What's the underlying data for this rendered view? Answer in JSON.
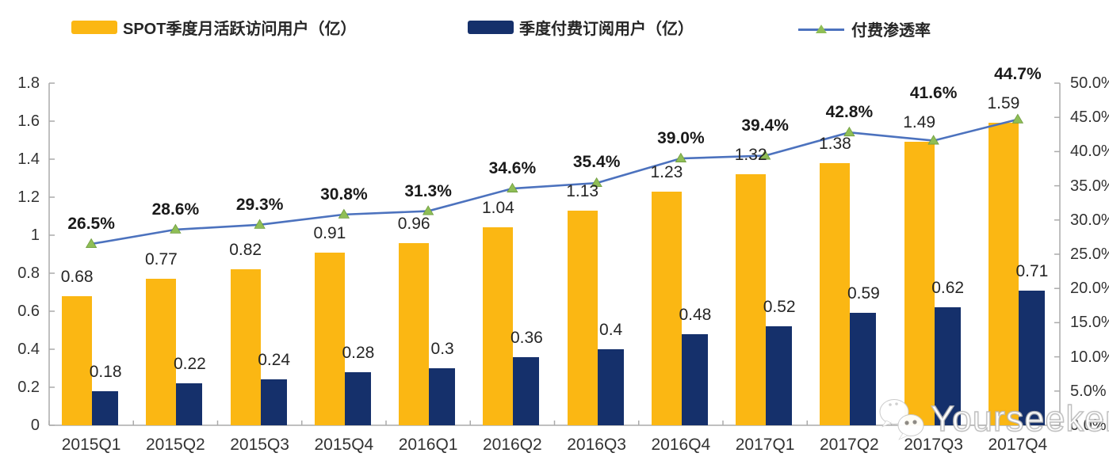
{
  "chart_data": {
    "type": "bar",
    "subtype": "bar-line-combo",
    "categories": [
      "2015Q1",
      "2015Q2",
      "2015Q3",
      "2015Q4",
      "2016Q1",
      "2016Q2",
      "2016Q3",
      "2016Q4",
      "2017Q1",
      "2017Q2",
      "2017Q3",
      "2017Q4"
    ],
    "series": [
      {
        "name": "SPOT季度月活跃访问用户（亿）",
        "type": "bar",
        "axis": "left",
        "color": "#FBB713",
        "values": [
          0.68,
          0.77,
          0.82,
          0.91,
          0.96,
          1.04,
          1.13,
          1.23,
          1.32,
          1.38,
          1.49,
          1.59
        ],
        "labels": [
          "0.68",
          "0.77",
          "0.82",
          "0.91",
          "0.96",
          "1.04",
          "1.13",
          "1.23",
          "1.32",
          "1.38",
          "1.49",
          "1.59"
        ]
      },
      {
        "name": "季度付费订阅用户（亿）",
        "type": "bar",
        "axis": "left",
        "color": "#15306B",
        "values": [
          0.18,
          0.22,
          0.24,
          0.28,
          0.3,
          0.36,
          0.4,
          0.48,
          0.52,
          0.59,
          0.62,
          0.71
        ],
        "labels": [
          "0.18",
          "0.22",
          "0.24",
          "0.28",
          "0.3",
          "0.36",
          "0.4",
          "0.48",
          "0.52",
          "0.59",
          "0.62",
          "0.71"
        ]
      },
      {
        "name": "付费渗透率",
        "type": "line",
        "axis": "right",
        "color": "#4C72BE",
        "marker_color": "#8FBE56",
        "marker_edge_color": "#6F9C3F",
        "values": [
          26.5,
          28.6,
          29.3,
          30.8,
          31.3,
          34.6,
          35.4,
          39.0,
          39.4,
          42.8,
          41.6,
          44.7
        ],
        "labels": [
          "26.5%",
          "28.6%",
          "29.3%",
          "30.8%",
          "31.3%",
          "34.6%",
          "35.4%",
          "39.0%",
          "39.4%",
          "42.8%",
          "41.6%",
          "44.7%"
        ]
      }
    ],
    "left_axis": {
      "min": 0,
      "max": 1.8,
      "step": 0.2,
      "tick_labels": [
        "1.8",
        "1.6",
        "1.4",
        "1.2",
        "1",
        "0.8",
        "0.6",
        "0.4",
        "0.2",
        "0"
      ]
    },
    "right_axis": {
      "min": 0,
      "max": 50,
      "step": 5,
      "tick_labels": [
        "50.0%",
        "45.0%",
        "40.0%",
        "35.0%",
        "30.0%",
        "25.0%",
        "20.0%",
        "15.0%",
        "10.0%",
        "5.0%",
        "0.0%"
      ]
    },
    "grid": false,
    "legend_position": "top",
    "axis_color": "#ABABAB"
  },
  "watermark": {
    "text": "Yourseeker",
    "icon": "wechat-icon"
  }
}
